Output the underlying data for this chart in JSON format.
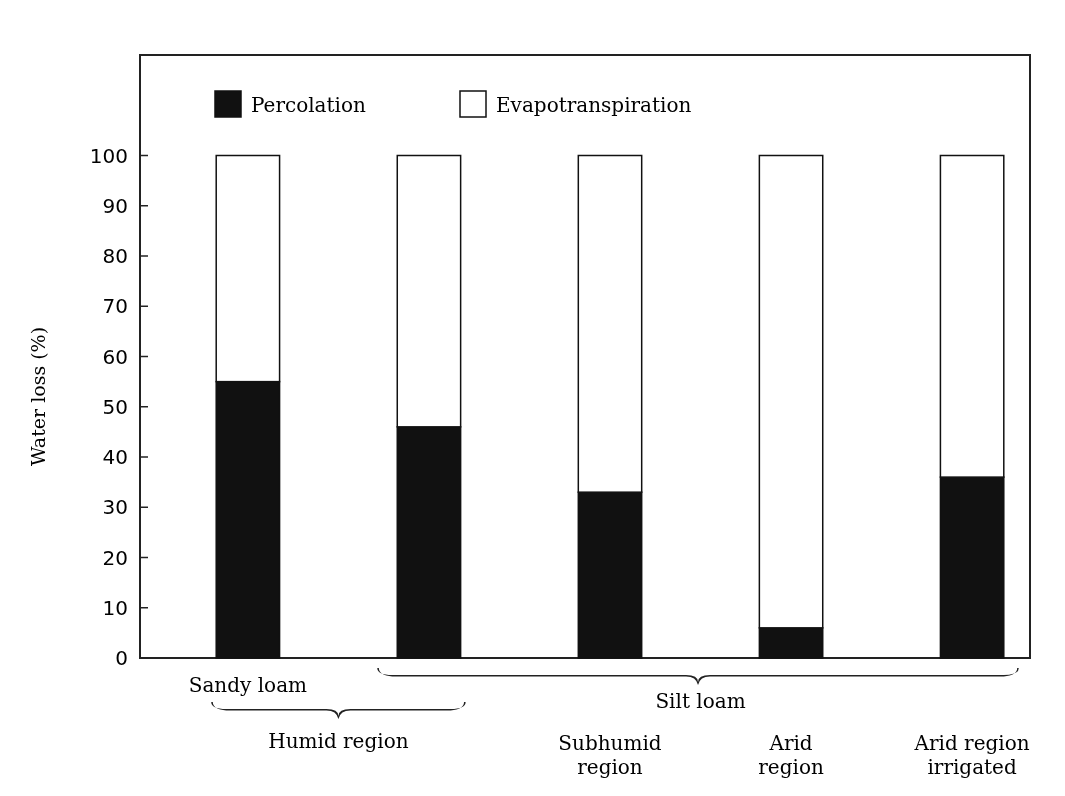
{
  "chart_data": {
    "type": "bar",
    "stacked": true,
    "ylabel": "Water loss (%)",
    "categories": [
      "Sandy loam",
      null,
      "Subhumid\nregion",
      "Arid\nregion",
      "Arid region\nirrigated"
    ],
    "series": [
      {
        "name": "Percolation",
        "color": "#111111",
        "values": [
          55,
          46,
          33,
          6,
          36
        ]
      },
      {
        "name": "Evapotranspiration",
        "color": "#ffffff",
        "values": [
          45,
          54,
          67,
          94,
          64
        ]
      }
    ],
    "ylim": [
      0,
      120
    ],
    "yticks": [
      0,
      10,
      20,
      30,
      40,
      50,
      60,
      70,
      80,
      90,
      100
    ],
    "legend": "top left",
    "annotations": [
      "Silt loam",
      "Humid region"
    ]
  }
}
